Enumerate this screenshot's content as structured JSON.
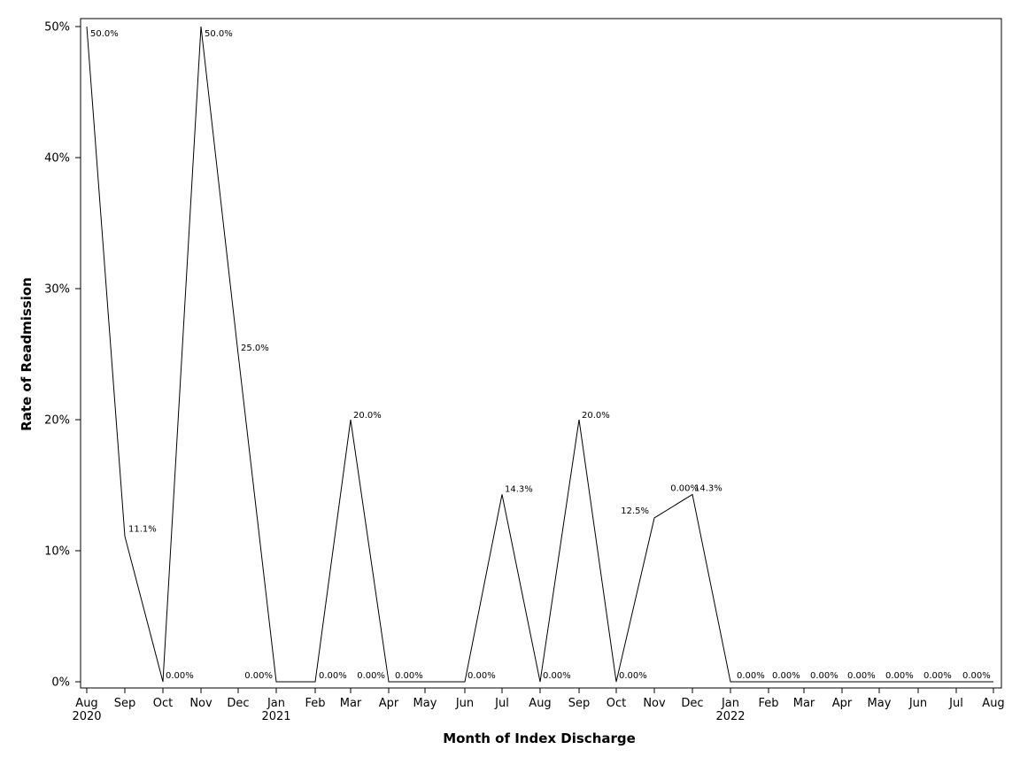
{
  "chart_data": {
    "type": "line",
    "xlabel": "Month of Index Discharge",
    "ylabel": "Rate of Readmission",
    "ylim": [
      0,
      50
    ],
    "y_ticks": [
      "0%",
      "10%",
      "20%",
      "30%",
      "40%",
      "50%"
    ],
    "y_tick_values": [
      0,
      10,
      20,
      30,
      40,
      50
    ],
    "grid": false,
    "x": [
      "2020-08",
      "2020-09",
      "2020-10",
      "2020-11",
      "2020-12",
      "2021-01",
      "2021-02",
      "2021-03",
      "2021-04",
      "2021-05",
      "2021-06",
      "2021-07",
      "2021-08",
      "2021-09",
      "2021-10",
      "2021-11",
      "2021-12",
      "2022-01",
      "2022-02",
      "2022-03",
      "2022-04",
      "2022-05",
      "2022-06",
      "2022-07",
      "2022-08"
    ],
    "x_tick_labels": [
      "Aug",
      "Sep",
      "Oct",
      "Nov",
      "Dec",
      "Jan",
      "Feb",
      "Mar",
      "Apr",
      "May",
      "Jun",
      "Jul",
      "Aug",
      "Sep",
      "Oct",
      "Nov",
      "Dec",
      "Jan",
      "Feb",
      "Mar",
      "Apr",
      "May",
      "Jun",
      "Jul",
      "Aug"
    ],
    "x_year_labels": [
      {
        "month": "2020-08",
        "label": "2020"
      },
      {
        "month": "2021-01",
        "label": "2021"
      },
      {
        "month": "2022-01",
        "label": "2022"
      }
    ],
    "values": [
      50.0,
      11.1,
      0,
      50.0,
      25.0,
      0,
      0,
      20.0,
      0,
      0,
      0,
      14.3,
      0,
      20.0,
      0,
      12.5,
      14.3,
      0,
      0,
      0,
      0,
      0,
      0,
      0,
      0
    ],
    "point_labels": [
      {
        "month": "2020-08",
        "label": "50.0%"
      },
      {
        "month": "2020-09",
        "label": "11.1%"
      },
      {
        "month": "2020-10",
        "label": "0.00%"
      },
      {
        "month": "2020-11",
        "label": "50.0%"
      },
      {
        "month": "2020-12",
        "label": "25.0%"
      },
      {
        "month": "2021-01",
        "label": "0.00%"
      },
      {
        "month": "2021-02",
        "label": "0.00%"
      },
      {
        "month": "2021-03",
        "label": "20.0%"
      },
      {
        "month": "2021-04",
        "label": "0.00%"
      },
      {
        "month": "2021-04",
        "label": "0.00%"
      },
      {
        "month": "2021-06",
        "label": "0.00%"
      },
      {
        "month": "2021-07",
        "label": "14.3%"
      },
      {
        "month": "2021-08",
        "label": "0.00%"
      },
      {
        "month": "2021-09",
        "label": "20.0%"
      },
      {
        "month": "2021-10",
        "label": "0.00%"
      },
      {
        "month": "2021-11",
        "label": "12.5%"
      },
      {
        "month": "2021-12",
        "label": "14.3%"
      },
      {
        "month": "2021-12",
        "label": "0.00%"
      },
      {
        "month": "2022-01",
        "label": "0.00%"
      },
      {
        "month": "2022-02",
        "label": "0.00%"
      },
      {
        "month": "2022-03",
        "label": "0.00%"
      },
      {
        "month": "2022-04",
        "label": "0.00%"
      },
      {
        "month": "2022-05",
        "label": "0.00%"
      },
      {
        "month": "2022-06",
        "label": "0.00%"
      },
      {
        "month": "2022-07",
        "label": "0.00%"
      }
    ],
    "line_color": "#000000"
  }
}
